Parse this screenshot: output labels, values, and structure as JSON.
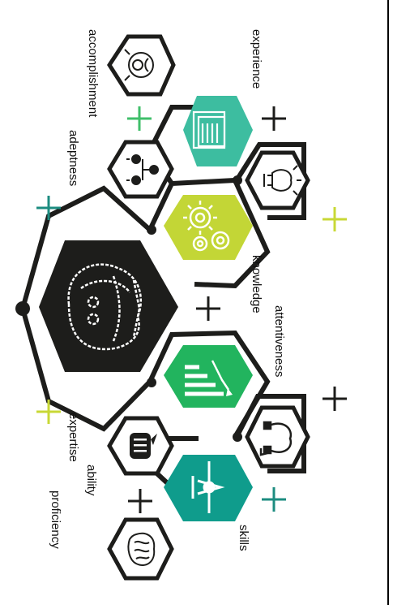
{
  "labels": {
    "experience": "experience",
    "accomplishment": "accomplishment",
    "adeptness": "adeptness",
    "knowledge": "knowledge",
    "attentiveness": "attentiveness",
    "expertise": "expertise",
    "ability": "ability",
    "proficiency": "proficiency",
    "skills": "skills"
  },
  "icons": [
    "target-person-icon",
    "documents-icon",
    "org-chart-icon",
    "lightbulb-icon",
    "gears-icon",
    "robot-head-icon",
    "chart-arrow-icon",
    "headset-icon",
    "speech-bubble-icon",
    "airplane-icon",
    "brain-icon"
  ],
  "colors": {
    "teal": "#3dbda0",
    "lime": "#c3d636",
    "green": "#22b45e",
    "dark_teal": "#0f9c8c",
    "black": "#1d1d1b",
    "plus_teal": "#1c8c80",
    "plus_lime": "#c8d836",
    "plus_green": "#3fbf6a"
  }
}
